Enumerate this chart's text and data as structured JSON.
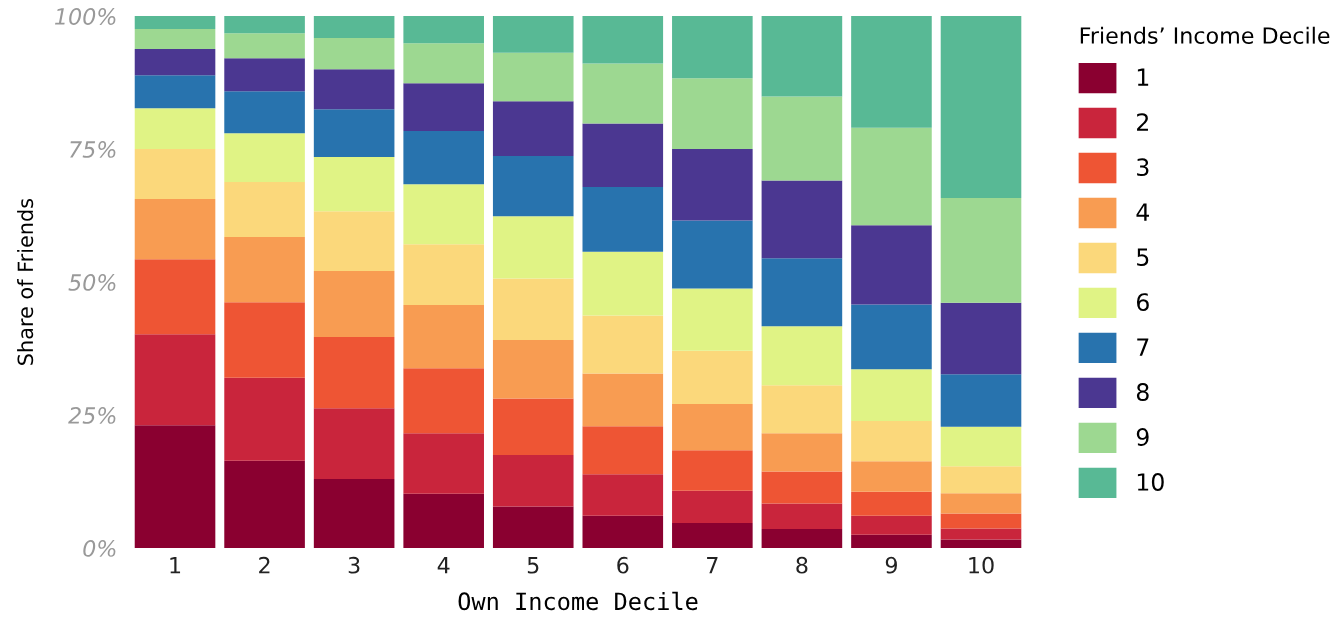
{
  "chart_data": {
    "type": "bar",
    "stacked": true,
    "xlabel": "Own Income Decile",
    "ylabel": "Share of Friends",
    "legend_title": "Friends’ Income Decile",
    "legend": "right",
    "grid": false,
    "categories": [
      "1",
      "2",
      "3",
      "4",
      "5",
      "6",
      "7",
      "8",
      "9",
      "10"
    ],
    "ylim": [
      0,
      100
    ],
    "yticks": [
      {
        "value": 0,
        "label": "0%"
      },
      {
        "value": 25,
        "label": "25%"
      },
      {
        "value": 50,
        "label": "50%"
      },
      {
        "value": 75,
        "label": "75%"
      },
      {
        "value": 100,
        "label": "100%"
      }
    ],
    "series": [
      {
        "name": "1",
        "color": "#8a0030",
        "values": [
          23.1,
          16.4,
          13.0,
          10.2,
          7.8,
          6.1,
          4.7,
          3.6,
          2.5,
          1.6
        ]
      },
      {
        "name": "2",
        "color": "#c9253c",
        "values": [
          17.1,
          15.6,
          13.3,
          11.4,
          9.7,
          7.8,
          6.1,
          4.8,
          3.6,
          2.1
        ]
      },
      {
        "name": "3",
        "color": "#ee5534",
        "values": [
          14.1,
          14.2,
          13.4,
          12.2,
          10.6,
          9.0,
          7.6,
          6.0,
          4.5,
          2.8
        ]
      },
      {
        "name": "4",
        "color": "#f89c52",
        "values": [
          11.3,
          12.3,
          12.4,
          11.9,
          11.0,
          9.9,
          8.7,
          7.2,
          5.7,
          3.8
        ]
      },
      {
        "name": "5",
        "color": "#fbd87b",
        "values": [
          9.4,
          10.3,
          11.2,
          11.4,
          11.6,
          10.9,
          10.0,
          9.0,
          7.6,
          5.1
        ]
      },
      {
        "name": "6",
        "color": "#e0f385",
        "values": [
          7.7,
          9.2,
          10.2,
          11.3,
          11.7,
          12.0,
          11.7,
          11.1,
          9.7,
          7.4
        ]
      },
      {
        "name": "7",
        "color": "#2873ae",
        "values": [
          6.2,
          7.9,
          9.0,
          10.0,
          11.3,
          12.2,
          12.8,
          12.8,
          12.2,
          9.9
        ]
      },
      {
        "name": "8",
        "color": "#4b3791",
        "values": [
          4.9,
          6.2,
          7.5,
          9.0,
          10.3,
          11.9,
          13.4,
          14.6,
          14.9,
          13.4
        ]
      },
      {
        "name": "9",
        "color": "#9dd891",
        "values": [
          3.8,
          4.7,
          5.9,
          7.5,
          9.1,
          11.3,
          13.3,
          15.8,
          18.3,
          19.7
        ]
      },
      {
        "name": "10",
        "color": "#58b995",
        "values": [
          2.4,
          3.2,
          4.1,
          5.1,
          6.9,
          8.9,
          11.7,
          15.1,
          21.0,
          34.2
        ]
      }
    ]
  }
}
